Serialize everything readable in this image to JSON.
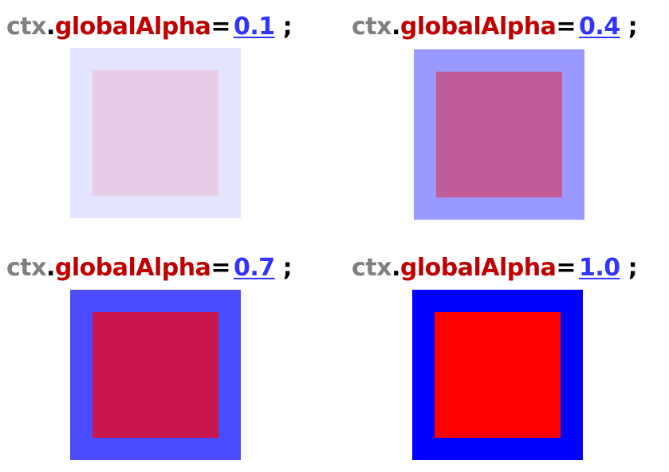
{
  "caption_parts": {
    "object": "ctx",
    "dot": ".",
    "property": "globalAlpha",
    "equals": "=",
    "semicolon": ";"
  },
  "colors": {
    "outer_square": "#0000ff",
    "inner_square": "#ff0000",
    "object_text": "#7f7f7f",
    "property_text": "#c00000",
    "value_text": "#3333ff"
  },
  "examples": [
    {
      "value_label": "0.1",
      "alpha": 0.1
    },
    {
      "value_label": "0.4",
      "alpha": 0.4
    },
    {
      "value_label": "0.7",
      "alpha": 0.7
    },
    {
      "value_label": "1.0",
      "alpha": 1.0
    }
  ]
}
